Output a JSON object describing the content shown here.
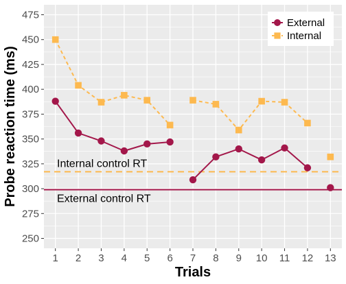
{
  "chart_data": {
    "type": "line",
    "xlabel": "Trials",
    "ylabel": "Probe reaction time (ms)",
    "x": [
      1,
      2,
      3,
      4,
      5,
      6,
      7,
      8,
      9,
      10,
      11,
      12,
      13
    ],
    "xlim": [
      0.5,
      13.5
    ],
    "ylim": [
      240,
      485
    ],
    "y_ticks": [
      250,
      275,
      300,
      325,
      350,
      375,
      400,
      425,
      450,
      475
    ],
    "grid": true,
    "legend_position": "top-right",
    "series": [
      {
        "name": "External",
        "color": "#a3174a",
        "line_style": "solid",
        "marker": "circle",
        "segments": [
          [
            [
              1,
              388
            ],
            [
              2,
              356
            ],
            [
              3,
              348
            ],
            [
              4,
              338
            ],
            [
              5,
              345
            ],
            [
              6,
              347
            ]
          ],
          [
            [
              7,
              309
            ],
            [
              8,
              332
            ],
            [
              9,
              340
            ],
            [
              10,
              329
            ],
            [
              11,
              341
            ],
            [
              12,
              321
            ]
          ],
          [
            [
              13,
              301
            ]
          ]
        ]
      },
      {
        "name": "Internal",
        "color": "#fdb94f",
        "line_style": "dashed",
        "marker": "square",
        "segments": [
          [
            [
              1,
              450
            ],
            [
              2,
              404
            ],
            [
              3,
              387
            ],
            [
              4,
              394
            ],
            [
              5,
              389
            ],
            [
              6,
              364
            ]
          ],
          [
            [
              7,
              389
            ],
            [
              8,
              385
            ],
            [
              9,
              359
            ],
            [
              10,
              388
            ],
            [
              11,
              387
            ],
            [
              12,
              366
            ]
          ],
          [
            [
              13,
              332
            ]
          ]
        ]
      }
    ],
    "reference_lines": [
      {
        "label": "Internal control RT",
        "y": 317,
        "color": "#fdb94f",
        "line_style": "dashed"
      },
      {
        "label": "External control RT",
        "y": 299,
        "color": "#a3174a",
        "line_style": "solid"
      }
    ]
  }
}
